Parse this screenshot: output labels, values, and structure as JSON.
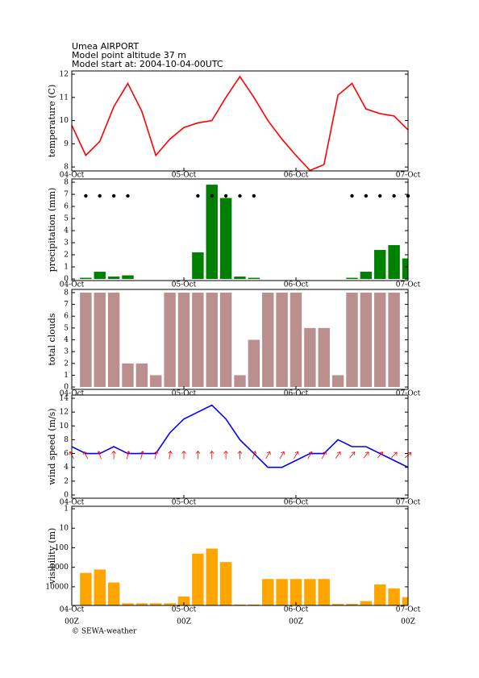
{
  "header": {
    "lines": [
      "Umea AIRPORT",
      "Model point altitude  37 m",
      "Model start at: 2004-10-04-00UTC"
    ]
  },
  "footer": "© SEWA-weather",
  "chart_data": [
    {
      "type": "line",
      "ylabel": "temperature (C)",
      "color": "#ff0000",
      "x": [
        0,
        3,
        6,
        9,
        12,
        15,
        18,
        21,
        24,
        27,
        30,
        33,
        36,
        39,
        42,
        45,
        48,
        51,
        54,
        57,
        60,
        63,
        66,
        69,
        72
      ],
      "values": [
        9.8,
        8.5,
        9.1,
        10.6,
        11.6,
        10.4,
        8.5,
        9.2,
        9.7,
        9.9,
        10.0,
        11.0,
        11.9,
        11.0,
        10.0,
        9.2,
        8.5,
        7.85,
        8.1,
        11.1,
        11.6,
        10.5,
        10.3,
        10.2,
        9.6
      ],
      "xlim": [
        0,
        72
      ],
      "xticks": [
        {
          "value": 0,
          "label": "04-Oct"
        },
        {
          "value": 24,
          "label": "05-Oct"
        },
        {
          "value": 48,
          "label": "06-Oct"
        },
        {
          "value": 72,
          "label": "07-Oct"
        }
      ],
      "ylim": [
        7.83,
        12.14
      ],
      "yticks": [
        8,
        9,
        10,
        11,
        12
      ]
    },
    {
      "type": "bar",
      "ylabel": "precipitation (mm)",
      "color": "#008000",
      "marker_color": "#000000",
      "x": [
        3,
        6,
        9,
        12,
        15,
        18,
        21,
        24,
        27,
        30,
        33,
        36,
        39,
        42,
        45,
        48,
        51,
        54,
        57,
        60,
        63,
        66,
        69,
        72
      ],
      "values": [
        0.1,
        0.6,
        0.2,
        0.3,
        0,
        0,
        0,
        0,
        2.2,
        7.8,
        6.7,
        0.2,
        0.1,
        0,
        0,
        0,
        0,
        0,
        0,
        0.1,
        0.6,
        2.4,
        2.8,
        1.7
      ],
      "xlim": [
        0,
        72
      ],
      "xticks": [
        {
          "value": 0,
          "label": "04-Oct"
        },
        {
          "value": 24,
          "label": "05-Oct"
        },
        {
          "value": 48,
          "label": "06-Oct"
        },
        {
          "value": 72,
          "label": "07-Oct"
        }
      ],
      "ylim": [
        -0.13,
        8.27
      ],
      "yticks": [
        0,
        1,
        2,
        3,
        4,
        5,
        6,
        7,
        8
      ]
    },
    {
      "type": "bar",
      "ylabel": "total clouds",
      "color": "#bc8f8f",
      "x": [
        3,
        6,
        9,
        12,
        15,
        18,
        21,
        24,
        27,
        30,
        33,
        36,
        39,
        42,
        45,
        48,
        51,
        54,
        57,
        60,
        63,
        66,
        69
      ],
      "values": [
        8,
        8,
        8,
        2,
        2,
        1,
        8,
        8,
        8,
        8,
        8,
        1,
        4,
        8,
        8,
        8,
        5,
        5,
        1,
        8,
        8,
        8,
        8
      ],
      "xlim": [
        0,
        72
      ],
      "xticks": [
        {
          "value": 0,
          "label": "04-Oct"
        },
        {
          "value": 24,
          "label": "05-Oct"
        },
        {
          "value": 48,
          "label": "06-Oct"
        },
        {
          "value": 72,
          "label": "07-Oct"
        }
      ],
      "ylim": [
        -0.2,
        8.27
      ],
      "yticks": [
        0,
        1,
        2,
        3,
        4,
        5,
        6,
        7,
        8
      ]
    },
    {
      "type": "line",
      "ylabel": "wind speed (m/s)",
      "color": "#0000ff",
      "arrow_color": "#ff0000",
      "x": [
        0,
        3,
        6,
        9,
        12,
        15,
        18,
        21,
        24,
        27,
        30,
        33,
        36,
        39,
        42,
        45,
        48,
        51,
        54,
        57,
        60,
        63,
        66,
        69,
        72
      ],
      "values": [
        7,
        6,
        6,
        7,
        6,
        6,
        6,
        9,
        11,
        12,
        13,
        11,
        8,
        6,
        4,
        4,
        5,
        6,
        6,
        8,
        7,
        7,
        6,
        5,
        4
      ],
      "direction": [
        -30,
        -30,
        -20,
        0,
        15,
        15,
        15,
        10,
        0,
        0,
        0,
        0,
        0,
        20,
        30,
        30,
        30,
        30,
        30,
        35,
        40,
        40,
        40,
        45,
        50
      ],
      "xlim": [
        0,
        72
      ],
      "xticks": [
        {
          "value": 0,
          "label": "04-Oct"
        },
        {
          "value": 24,
          "label": "05-Oct"
        },
        {
          "value": 48,
          "label": "06-Oct"
        },
        {
          "value": 72,
          "label": "07-Oct"
        }
      ],
      "ylim": [
        -0.47,
        14.47
      ],
      "yticks": [
        0,
        2,
        4,
        6,
        8,
        10,
        12,
        14
      ]
    },
    {
      "type": "bar",
      "ylabel": "visibility (m)",
      "color": "#ffa500",
      "log": true,
      "x": [
        3,
        6,
        9,
        12,
        15,
        18,
        21,
        24,
        27,
        30,
        33,
        36,
        39,
        42,
        45,
        48,
        51,
        54,
        57,
        60,
        63,
        66,
        69,
        72
      ],
      "values": [
        1950,
        1300,
        6000,
        70000,
        70000,
        70000,
        70000,
        31000,
        200,
        110,
        540,
        80000,
        80000,
        4000,
        4000,
        4000,
        4000,
        4000,
        75000,
        75000,
        54000,
        7600,
        12000,
        34000
      ],
      "xlim": [
        0,
        72
      ],
      "xticks": [
        {
          "value": 0,
          "label": "04-Oct"
        },
        {
          "value": 24,
          "label": "05-Oct"
        },
        {
          "value": 48,
          "label": "06-Oct"
        },
        {
          "value": 72,
          "label": "07-Oct"
        }
      ],
      "time_labels": [
        "00Z",
        "00Z",
        "00Z",
        "00Z"
      ],
      "ylim": [
        90000,
        0.75
      ],
      "yticks": [
        1,
        10,
        100,
        1000,
        10000
      ]
    }
  ]
}
